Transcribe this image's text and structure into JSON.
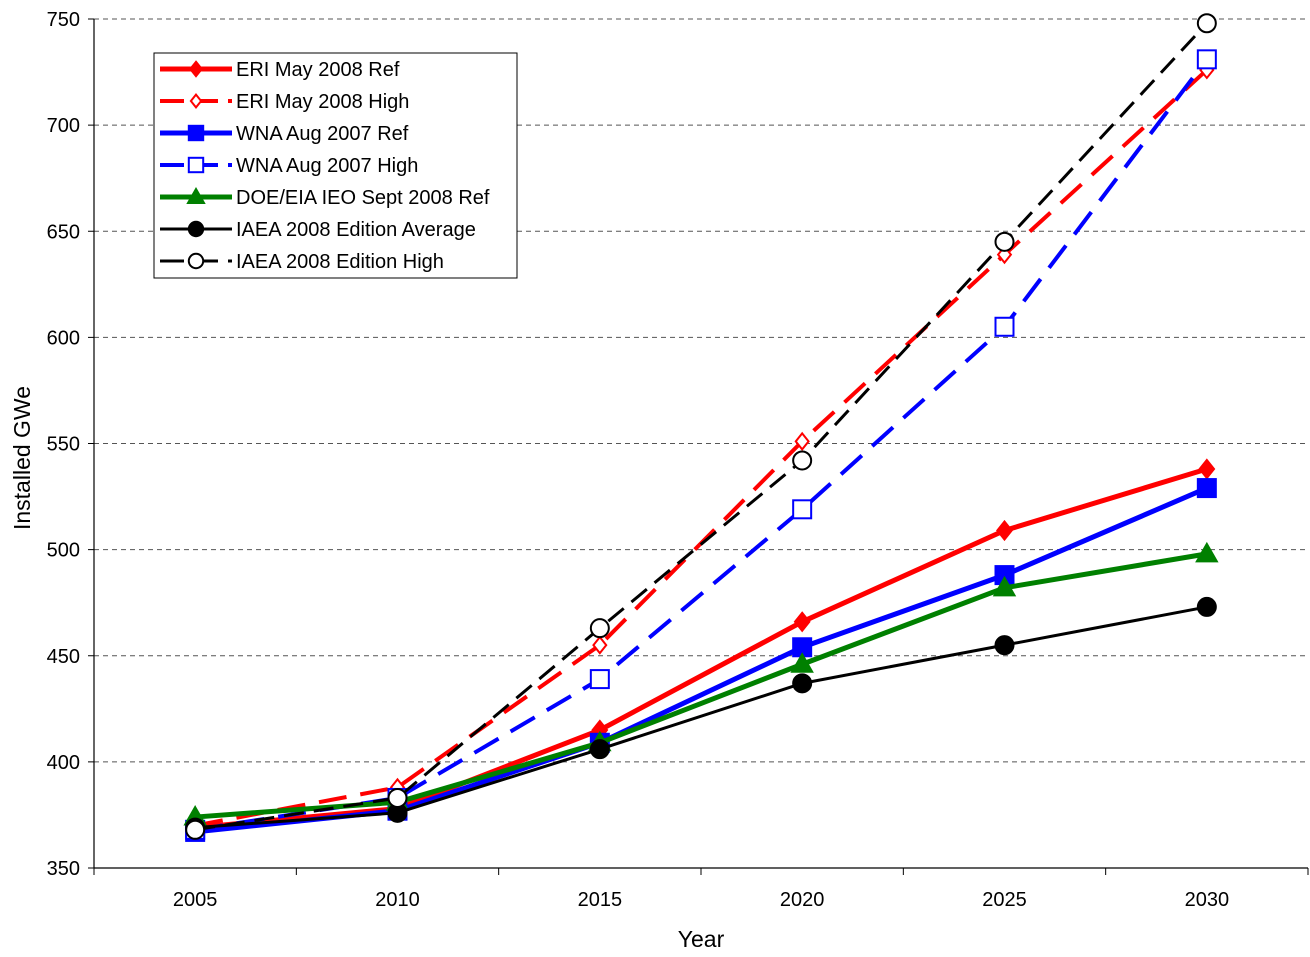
{
  "chart_data": {
    "type": "line",
    "xlabel": "Year",
    "ylabel": "Installed GWe",
    "x": [
      2005,
      2010,
      2015,
      2020,
      2025,
      2030
    ],
    "xlim": [
      2002.5,
      2032.5
    ],
    "ylim": [
      350,
      750
    ],
    "yticks": [
      350,
      400,
      450,
      500,
      550,
      600,
      650,
      700,
      750
    ],
    "grid": "horizontal-dashed",
    "legend_position": "top-left",
    "series": [
      {
        "name": "ERI May 2008  Ref",
        "values": [
          369,
          378,
          415,
          466,
          509,
          538
        ],
        "color": "#ff0000",
        "style": "solid",
        "marker": "diamond-filled"
      },
      {
        "name": "ERI May 2008  High",
        "values": [
          370,
          388,
          455,
          551,
          639,
          726
        ],
        "color": "#ff0000",
        "style": "dashed",
        "marker": "diamond-open"
      },
      {
        "name": "WNA Aug 2007 Ref",
        "values": [
          367,
          377,
          409,
          454,
          488,
          529
        ],
        "color": "#0000ff",
        "style": "solid",
        "marker": "square-filled"
      },
      {
        "name": "WNA Aug 2007 High",
        "values": [
          368,
          383,
          439,
          519,
          605,
          731
        ],
        "color": "#0000ff",
        "style": "dashed",
        "marker": "square-open"
      },
      {
        "name": "DOE/EIA IEO Sept 2008 Ref",
        "values": [
          374,
          381,
          409,
          446,
          482,
          498
        ],
        "color": "#008000",
        "style": "solid",
        "marker": "triangle-filled"
      },
      {
        "name": "IAEA 2008 Edition Average",
        "values": [
          369,
          376,
          406,
          437,
          455,
          473
        ],
        "color": "#000000",
        "style": "solid",
        "marker": "circle-filled"
      },
      {
        "name": "IAEA 2008 Edition High",
        "values": [
          368,
          383,
          463,
          542,
          645,
          748
        ],
        "color": "#000000",
        "style": "dashed",
        "marker": "circle-open"
      }
    ]
  }
}
